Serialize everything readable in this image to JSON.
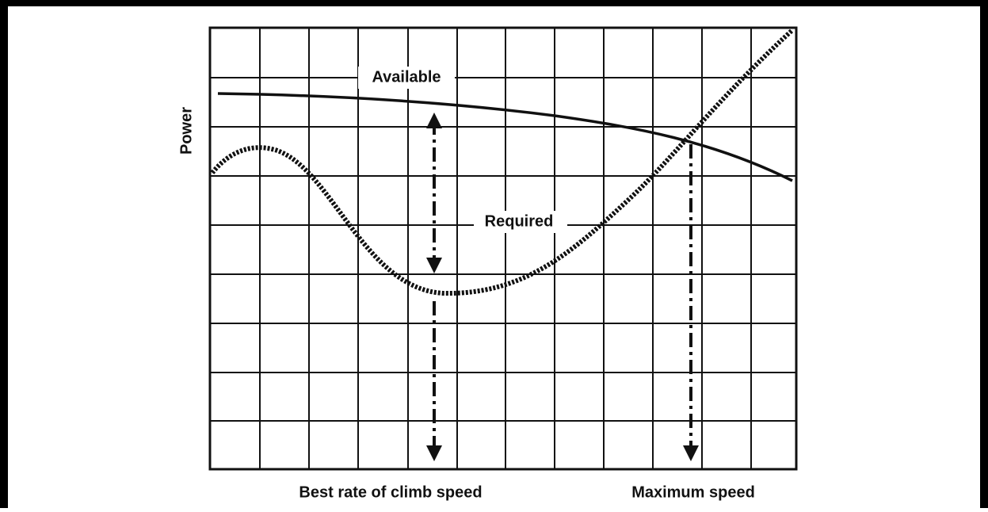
{
  "diagram": {
    "y_axis_label": "Power",
    "curves": [
      {
        "label": "Available"
      },
      {
        "label": "Required"
      }
    ],
    "markers": [
      {
        "label": "Best rate of climb speed"
      },
      {
        "label": "Maximum speed"
      }
    ]
  }
}
